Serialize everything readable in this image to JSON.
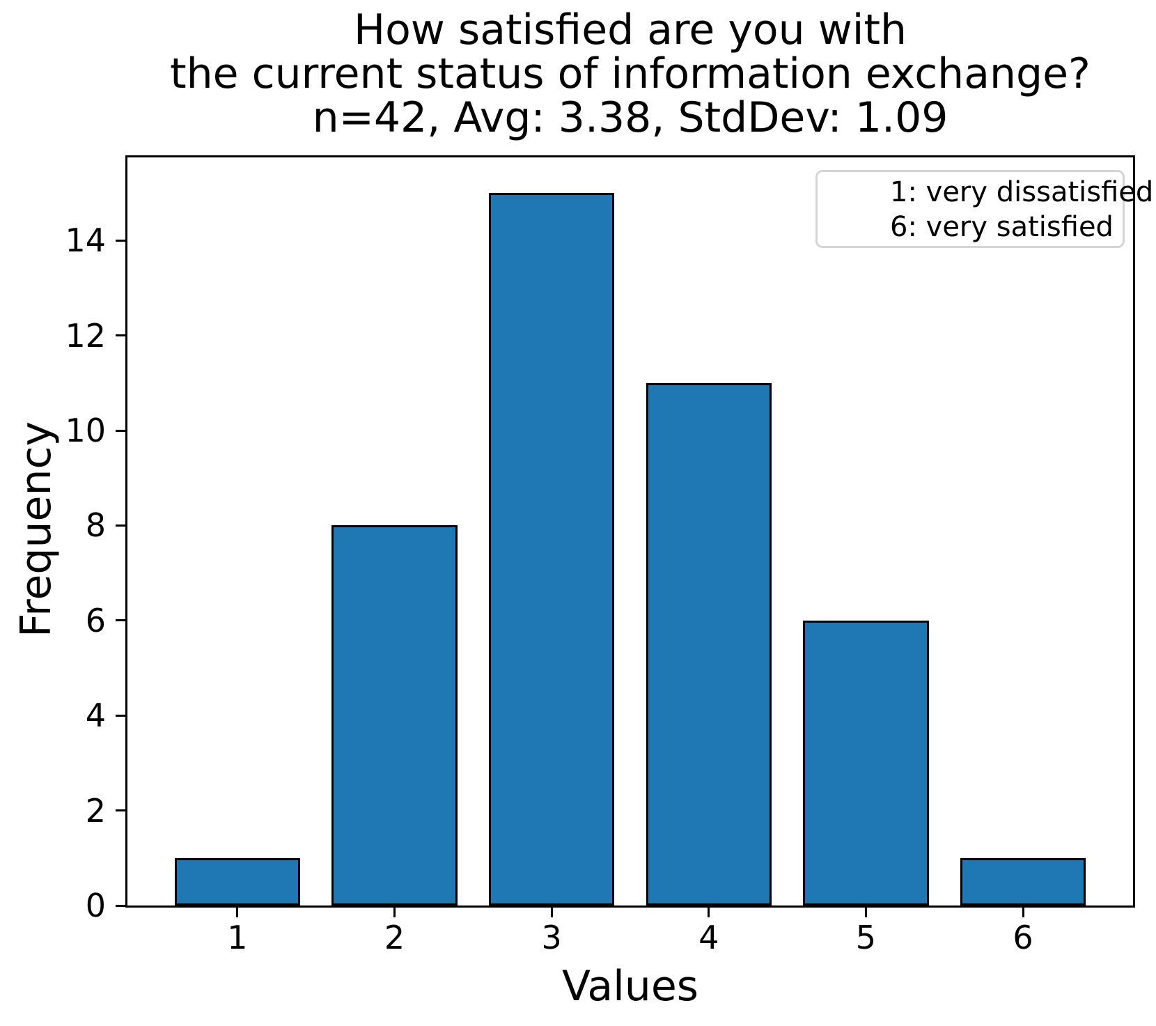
{
  "chart_data": {
    "type": "bar",
    "title_lines": [
      "How satisfied are you with",
      "the current status of information exchange?",
      "n=42, Avg: 3.38, StdDev: 1.09"
    ],
    "n": 42,
    "avg": 3.38,
    "stddev": 1.09,
    "categories": [
      1,
      2,
      3,
      4,
      5,
      6
    ],
    "values": [
      1,
      8,
      15,
      11,
      6,
      1
    ],
    "xlabel": "Values",
    "ylabel": "Frequency",
    "yticks": [
      0,
      2,
      4,
      6,
      8,
      10,
      12,
      14
    ],
    "ylim": [
      0,
      15.75
    ],
    "xlim": [
      0.3,
      6.7
    ],
    "bar_width": 0.8,
    "bar_color": "#1f77b4",
    "bar_edge_color": "#000000",
    "axis_color": "#000000",
    "grid": false,
    "legend": {
      "position": "upper-right",
      "lines": [
        "1: very dissatisfied",
        "6: very satisfied"
      ]
    }
  }
}
